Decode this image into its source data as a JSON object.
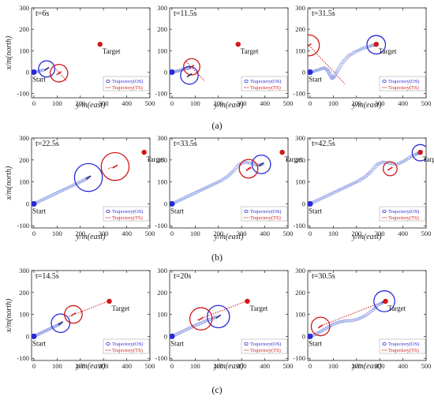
{
  "chart_data": [
    {
      "row": 0,
      "col": 0,
      "type": "scatter",
      "time_label": "t=6s",
      "xlabel": "y/m(east)",
      "ylabel": "x/m(north)",
      "xlim": [
        -10,
        500
      ],
      "ylim": [
        -120,
        300
      ],
      "xticks": [
        0,
        100,
        200,
        300,
        400,
        500
      ],
      "yticks": [
        -100,
        0,
        100,
        200,
        300
      ],
      "start": {
        "label": "Start",
        "point": [
          0,
          0
        ]
      },
      "target": {
        "label": "Target",
        "point": [
          285,
          130
        ]
      },
      "os_trajectory": [
        [
          0,
          0
        ],
        [
          20,
          4
        ],
        [
          40,
          10
        ]
      ],
      "os_circle": {
        "center": [
          55,
          15
        ],
        "radius": 35
      },
      "ts_circle": {
        "center": [
          108,
          -5
        ],
        "radius": 38
      },
      "ts_heading_line": [
        [
          90,
          20
        ],
        [
          140,
          -40
        ]
      ],
      "legend": [
        "Trajectory(OS)",
        "Trajectory(TS)"
      ]
    },
    {
      "row": 0,
      "col": 1,
      "type": "scatter",
      "time_label": "t=11.5s",
      "xlabel": "y/m(east)",
      "ylabel": "",
      "xlim": [
        -10,
        500
      ],
      "ylim": [
        -120,
        300
      ],
      "xticks": [
        0,
        100,
        200,
        300,
        400,
        500
      ],
      "yticks": [
        -100,
        0,
        100,
        200,
        300
      ],
      "start": {
        "label": "",
        "point": [
          0,
          0
        ]
      },
      "target": {
        "label": "Target",
        "point": [
          285,
          130
        ]
      },
      "os_trajectory": [
        [
          0,
          0
        ],
        [
          15,
          3
        ],
        [
          30,
          7
        ],
        [
          45,
          12
        ],
        [
          60,
          16
        ],
        [
          75,
          18
        ]
      ],
      "os_circle": {
        "center": [
          75,
          -15
        ],
        "radius": 38
      },
      "ts_circle": {
        "center": [
          85,
          25
        ],
        "radius": 35
      },
      "ts_heading_line": [
        [
          60,
          50
        ],
        [
          140,
          -40
        ]
      ],
      "legend": [
        "Trajectory(OS)",
        "Trajectory(TS)"
      ]
    },
    {
      "row": 0,
      "col": 2,
      "type": "scatter",
      "time_label": "t=31.5s",
      "xlabel": "y/m(east)",
      "ylabel": "",
      "xlim": [
        -10,
        500
      ],
      "ylim": [
        -120,
        300
      ],
      "xticks": [
        0,
        100,
        200,
        300,
        400,
        500
      ],
      "yticks": [
        -100,
        0,
        100,
        200,
        300
      ],
      "start": {
        "label": "Start",
        "point": [
          0,
          0
        ]
      },
      "target": {
        "label": "Target",
        "point": [
          285,
          130
        ]
      },
      "os_trajectory": [
        [
          0,
          0
        ],
        [
          20,
          5
        ],
        [
          40,
          12
        ],
        [
          60,
          20
        ],
        [
          75,
          10
        ],
        [
          85,
          -10
        ],
        [
          95,
          -30
        ],
        [
          105,
          -20
        ],
        [
          120,
          10
        ],
        [
          140,
          45
        ],
        [
          165,
          75
        ],
        [
          195,
          95
        ],
        [
          225,
          110
        ],
        [
          255,
          120
        ],
        [
          275,
          128
        ]
      ],
      "os_circle": {
        "center": [
          285,
          128
        ],
        "radius": 40
      },
      "ts_circle": {
        "center": [
          -5,
          125
        ],
        "radius": 45
      },
      "ts_heading_line": [
        [
          -5,
          125
        ],
        [
          150,
          -55
        ]
      ],
      "legend": [
        "Trajectory(OS)",
        "Trajectory(TS)"
      ]
    },
    {
      "row": 1,
      "col": 0,
      "type": "scatter",
      "time_label": "t=22.5s",
      "xlabel": "y/m(east)",
      "ylabel": "x/m(north)",
      "xlim": [
        -10,
        500
      ],
      "ylim": [
        -110,
        300
      ],
      "xticks": [
        0,
        100,
        200,
        300,
        400,
        500
      ],
      "yticks": [
        -100,
        0,
        100,
        200,
        300
      ],
      "start": {
        "label": "Start",
        "point": [
          0,
          0
        ]
      },
      "target": {
        "label": "Target",
        "point": [
          475,
          235
        ]
      },
      "os_trajectory": [
        [
          0,
          0
        ],
        [
          30,
          15
        ],
        [
          60,
          30
        ],
        [
          90,
          45
        ],
        [
          120,
          60
        ],
        [
          150,
          75
        ],
        [
          180,
          90
        ],
        [
          210,
          105
        ],
        [
          235,
          120
        ]
      ],
      "os_circle": {
        "center": [
          235,
          120
        ],
        "radius": 60
      },
      "ts_circle": {
        "center": [
          350,
          170
        ],
        "radius": 60
      },
      "ts_heading_line": [
        [
          320,
          160
        ],
        [
          360,
          175
        ]
      ],
      "legend": [
        "Trajectory(OS)",
        "Trajectory(TS)"
      ]
    },
    {
      "row": 1,
      "col": 1,
      "type": "scatter",
      "time_label": "t=33.5s",
      "xlabel": "y/m(east)",
      "ylabel": "",
      "xlim": [
        -10,
        500
      ],
      "ylim": [
        -110,
        300
      ],
      "xticks": [
        0,
        100,
        200,
        300,
        400,
        500
      ],
      "yticks": [
        -100,
        0,
        100,
        200,
        300
      ],
      "start": {
        "label": "Start",
        "point": [
          0,
          0
        ]
      },
      "target": {
        "label": "Target",
        "point": [
          475,
          235
        ]
      },
      "os_trajectory": [
        [
          0,
          0
        ],
        [
          30,
          15
        ],
        [
          60,
          30
        ],
        [
          90,
          45
        ],
        [
          120,
          60
        ],
        [
          150,
          75
        ],
        [
          180,
          90
        ],
        [
          210,
          105
        ],
        [
          240,
          125
        ],
        [
          265,
          150
        ],
        [
          290,
          180
        ],
        [
          315,
          190
        ],
        [
          345,
          185
        ],
        [
          370,
          175
        ],
        [
          390,
          180
        ]
      ],
      "os_circle": {
        "center": [
          385,
          180
        ],
        "radius": 40
      },
      "ts_circle": {
        "center": [
          330,
          160
        ],
        "radius": 40
      },
      "ts_heading_line": [
        [
          320,
          150
        ],
        [
          345,
          165
        ]
      ],
      "legend": [
        "Trajectory(OS)",
        "Trajectory(TS)"
      ]
    },
    {
      "row": 1,
      "col": 2,
      "type": "scatter",
      "time_label": "t=42.5s",
      "xlabel": "y/m(east)",
      "ylabel": "",
      "xlim": [
        -10,
        500
      ],
      "ylim": [
        -110,
        300
      ],
      "xticks": [
        0,
        100,
        200,
        300,
        400,
        500
      ],
      "yticks": [
        -100,
        0,
        100,
        200,
        300
      ],
      "start": {
        "label": "Start",
        "point": [
          0,
          0
        ]
      },
      "target": {
        "label": "Target",
        "point": [
          475,
          235
        ]
      },
      "os_trajectory": [
        [
          0,
          0
        ],
        [
          30,
          15
        ],
        [
          60,
          30
        ],
        [
          90,
          45
        ],
        [
          120,
          60
        ],
        [
          150,
          75
        ],
        [
          180,
          90
        ],
        [
          210,
          105
        ],
        [
          240,
          125
        ],
        [
          265,
          150
        ],
        [
          290,
          180
        ],
        [
          315,
          190
        ],
        [
          345,
          185
        ],
        [
          375,
          180
        ],
        [
          405,
          195
        ],
        [
          435,
          215
        ],
        [
          460,
          228
        ],
        [
          472,
          233
        ]
      ],
      "os_circle": {
        "center": [
          475,
          233
        ],
        "radius": 35
      },
      "ts_circle": {
        "center": [
          345,
          160
        ],
        "radius": 30
      },
      "ts_heading_line": [
        [
          335,
          155
        ],
        [
          355,
          165
        ]
      ],
      "legend": [
        "Trajectory(OS)",
        "Trajectory(TS)"
      ]
    },
    {
      "row": 2,
      "col": 0,
      "type": "scatter",
      "time_label": "t=14.5s",
      "xlabel": "y/m(east)",
      "ylabel": "x/m(north)",
      "xlim": [
        -10,
        500
      ],
      "ylim": [
        -110,
        300
      ],
      "xticks": [
        0,
        100,
        200,
        300,
        400,
        500
      ],
      "yticks": [
        -100,
        0,
        100,
        200,
        300
      ],
      "start": {
        "label": "Start",
        "point": [
          0,
          0
        ]
      },
      "target": {
        "label": "Target",
        "point": [
          325,
          160
        ]
      },
      "os_trajectory": [
        [
          0,
          0
        ],
        [
          20,
          10
        ],
        [
          40,
          20
        ],
        [
          60,
          30
        ],
        [
          80,
          40
        ],
        [
          100,
          50
        ],
        [
          115,
          58
        ]
      ],
      "os_circle": {
        "center": [
          115,
          60
        ],
        "radius": 40
      },
      "ts_circle": {
        "center": [
          170,
          100
        ],
        "radius": 38
      },
      "ts_heading_line": [
        [
          150,
          90
        ],
        [
          320,
          160
        ]
      ],
      "legend": [
        "Trajectory(OS)",
        "Trajectory(TS)"
      ]
    },
    {
      "row": 2,
      "col": 1,
      "type": "scatter",
      "time_label": "t=20s",
      "xlabel": "y/m(east)",
      "ylabel": "",
      "xlim": [
        -10,
        500
      ],
      "ylim": [
        -110,
        300
      ],
      "xticks": [
        0,
        100,
        200,
        300,
        400,
        500
      ],
      "yticks": [
        -100,
        0,
        100,
        200,
        300
      ],
      "start": {
        "label": "Start",
        "point": [
          0,
          0
        ]
      },
      "target": {
        "label": "Target",
        "point": [
          325,
          160
        ]
      },
      "os_trajectory": [
        [
          0,
          0
        ],
        [
          25,
          12
        ],
        [
          50,
          25
        ],
        [
          75,
          37
        ],
        [
          100,
          50
        ],
        [
          125,
          60
        ],
        [
          150,
          72
        ],
        [
          175,
          82
        ],
        [
          190,
          88
        ]
      ],
      "os_circle": {
        "center": [
          200,
          90
        ],
        "radius": 48
      },
      "ts_circle": {
        "center": [
          125,
          80
        ],
        "radius": 48
      },
      "ts_heading_line": [
        [
          110,
          75
        ],
        [
          320,
          160
        ]
      ],
      "legend": [
        "Trajectory(OS)",
        "Trajectory(TS)"
      ]
    },
    {
      "row": 2,
      "col": 2,
      "type": "scatter",
      "time_label": "t=30.5s",
      "xlabel": "y/m(east)",
      "ylabel": "",
      "xlim": [
        -10,
        500
      ],
      "ylim": [
        -110,
        300
      ],
      "xticks": [
        0,
        100,
        200,
        300,
        400,
        500
      ],
      "yticks": [
        -100,
        0,
        100,
        200,
        300
      ],
      "start": {
        "label": "Start",
        "point": [
          0,
          0
        ]
      },
      "target": {
        "label": "Target",
        "point": [
          325,
          160
        ]
      },
      "os_trajectory": [
        [
          0,
          0
        ],
        [
          25,
          10
        ],
        [
          50,
          25
        ],
        [
          75,
          40
        ],
        [
          100,
          55
        ],
        [
          125,
          65
        ],
        [
          150,
          70
        ],
        [
          180,
          72
        ],
        [
          210,
          80
        ],
        [
          240,
          95
        ],
        [
          270,
          120
        ],
        [
          295,
          145
        ],
        [
          315,
          155
        ]
      ],
      "os_circle": {
        "center": [
          320,
          160
        ],
        "radius": 45
      },
      "ts_circle": {
        "center": [
          45,
          45
        ],
        "radius": 40
      },
      "ts_heading_line": [
        [
          40,
          45
        ],
        [
          320,
          160
        ]
      ],
      "legend": [
        "Trajectory(OS)",
        "Trajectory(TS)"
      ]
    }
  ],
  "row_labels": [
    "(a)",
    "(b)",
    "(c)"
  ],
  "colors": {
    "os": "#2a2ad8",
    "os_fill": "#9aa8e6",
    "ts": "#d01818",
    "axis": "#222222"
  }
}
